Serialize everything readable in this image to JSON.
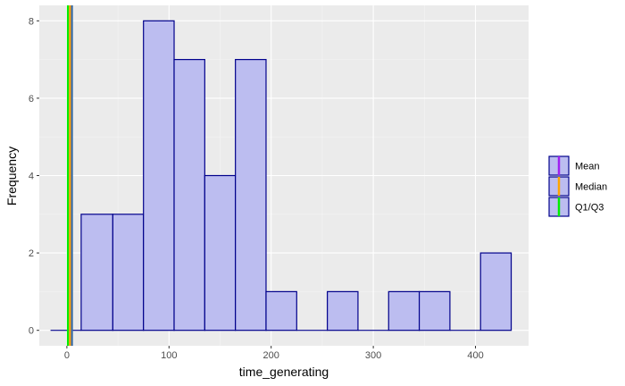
{
  "chart_data": {
    "type": "bar",
    "subtype": "histogram",
    "xlabel": "time_generating",
    "ylabel": "Frequency",
    "xlim": [
      -27,
      452
    ],
    "ylim": [
      -0.4,
      8.4
    ],
    "x_ticks": [
      0,
      100,
      200,
      300,
      400
    ],
    "y_ticks": [
      0,
      2,
      4,
      6,
      8
    ],
    "grid": true,
    "bins": [
      {
        "x0": -16,
        "x1": 14,
        "count": 0
      },
      {
        "x0": 14,
        "x1": 45,
        "count": 3
      },
      {
        "x0": 45,
        "x1": 75,
        "count": 3
      },
      {
        "x0": 75,
        "x1": 105,
        "count": 8
      },
      {
        "x0": 105,
        "x1": 135,
        "count": 7
      },
      {
        "x0": 135,
        "x1": 165,
        "count": 4
      },
      {
        "x0": 165,
        "x1": 195,
        "count": 7
      },
      {
        "x0": 195,
        "x1": 225,
        "count": 1
      },
      {
        "x0": 225,
        "x1": 255,
        "count": 0
      },
      {
        "x0": 255,
        "x1": 285,
        "count": 1
      },
      {
        "x0": 285,
        "x1": 315,
        "count": 0
      },
      {
        "x0": 315,
        "x1": 345,
        "count": 1
      },
      {
        "x0": 345,
        "x1": 375,
        "count": 1
      },
      {
        "x0": 375,
        "x1": 405,
        "count": 0
      },
      {
        "x0": 405,
        "x1": 435,
        "count": 2
      }
    ],
    "vlines": [
      {
        "name": "Mean",
        "x": 3,
        "color": "#a020f0"
      },
      {
        "name": "Median",
        "x": 3,
        "color": "#ffa500"
      },
      {
        "name": "Q1/Q3",
        "x": 1,
        "color": "#00ee00"
      },
      {
        "name": "Q1/Q3",
        "x": 5,
        "color": "#3a6ea5"
      }
    ],
    "legend": {
      "position": "right",
      "entries": [
        {
          "label": "Mean",
          "color": "#a020f0"
        },
        {
          "label": "Median",
          "color": "#ffa500"
        },
        {
          "label": "Q1/Q3",
          "color": "#00ee00"
        }
      ]
    },
    "bar_fill": "#bcbdf0",
    "bar_stroke": "#00008b",
    "panel_background": "#ebebeb"
  }
}
